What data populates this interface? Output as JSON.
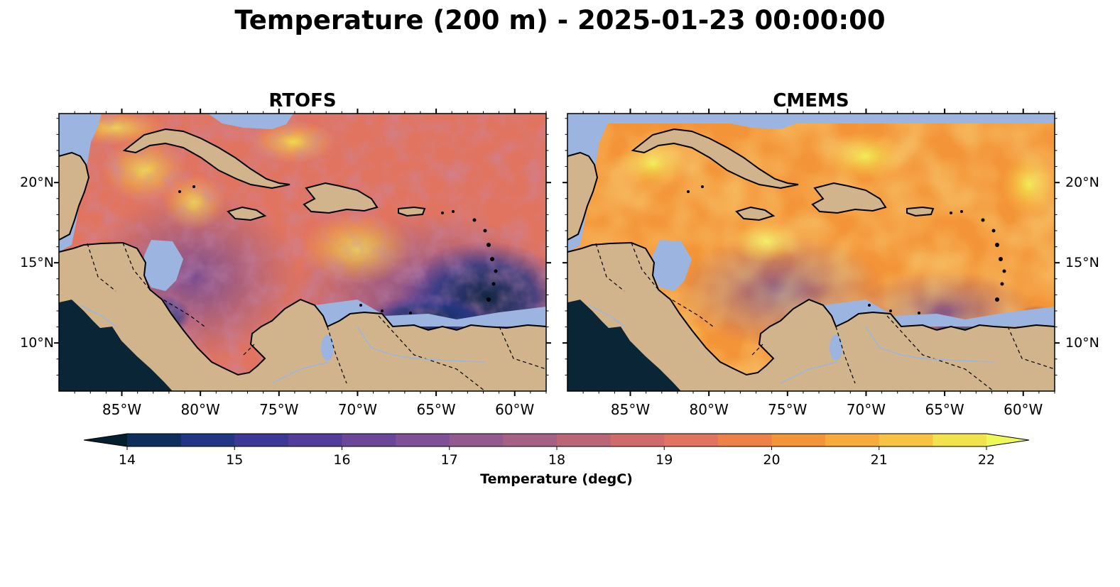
{
  "title": "Temperature (200 m) - 2025-01-23 00:00:00",
  "panels": [
    {
      "title": "RTOFS"
    },
    {
      "title": "CMEMS"
    }
  ],
  "map": {
    "lon_range": [
      -89,
      -58
    ],
    "lat_range": [
      7,
      24.3
    ],
    "lat_ticks": [
      "20°N",
      "15°N",
      "10°N"
    ],
    "lat_tick_values": [
      20,
      15,
      10
    ],
    "lon_ticks": [
      "85°W",
      "80°W",
      "75°W",
      "70°W",
      "65°W",
      "60°W"
    ],
    "lon_tick_values": [
      -85,
      -80,
      -75,
      -70,
      -65,
      -60
    ],
    "colors": {
      "land": "#d2b48c",
      "shelf": "#9bb5e0",
      "pacific": "#0a2535",
      "coastline": "#000000"
    }
  },
  "colorbar": {
    "label": "Temperature (degC)",
    "min": 14,
    "max": 22,
    "step": 0.5,
    "extend": "both",
    "tick_labels": [
      "14",
      "15",
      "16",
      "17",
      "18",
      "19",
      "20",
      "21",
      "22"
    ],
    "tick_values": [
      14,
      15,
      16,
      17,
      18,
      19,
      20,
      21,
      22
    ],
    "colors": [
      "#04202f",
      "#0e2e5c",
      "#213685",
      "#3b3896",
      "#533d9a",
      "#6a4799",
      "#7e5096",
      "#935a8e",
      "#a66083",
      "#bb6677",
      "#cf6c6b",
      "#e17460",
      "#ed8147",
      "#f49438",
      "#f8aa3c",
      "#f8c245",
      "#f1e34e",
      "#eef856"
    ]
  }
}
